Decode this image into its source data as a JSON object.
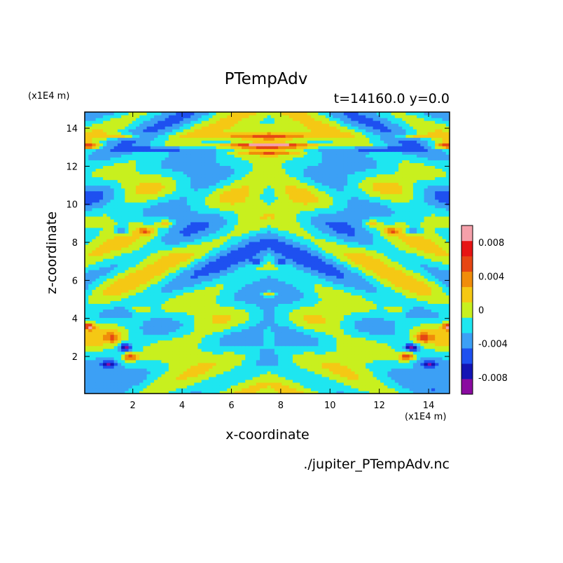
{
  "chart_data": {
    "type": "heatmap",
    "title": "PTempAdv",
    "subtitle": "t=14160.0 y=0.0",
    "xlabel": "x-coordinate",
    "ylabel": "z-coordinate",
    "x_unit": "(x1E4 m)",
    "y_unit": "(x1E4 m)",
    "footer": "./jupiter_PTempAdv.nc",
    "xlim": [
      0.05,
      14.85
    ],
    "ylim": [
      0.05,
      14.85
    ],
    "x_ticks": [
      2,
      4,
      6,
      8,
      10,
      12,
      14
    ],
    "y_ticks": [
      2,
      4,
      6,
      8,
      10,
      12,
      14
    ],
    "grid": false,
    "colorbar": {
      "levels": [
        -0.01,
        -0.008,
        -0.006,
        -0.004,
        -0.002,
        0,
        0.002,
        0.004,
        0.006,
        0.008,
        0.01
      ],
      "colors": [
        "#8a0aa0",
        "#1414b4",
        "#1e50f0",
        "#3ca0f5",
        "#1ee6f0",
        "#c8f01e",
        "#f5c814",
        "#f08c0a",
        "#e64614",
        "#e61414",
        "#f5a0aa"
      ],
      "tick_labels": [
        "-0.008",
        "-0.004",
        "0",
        "0.004",
        "0.008"
      ],
      "tick_values": [
        -0.008,
        -0.004,
        0,
        0.004,
        0.008
      ]
    },
    "background_value": -0.001,
    "features": [
      {
        "x": 7.5,
        "z": 13.1,
        "rx": 2.2,
        "rz": 0.12,
        "v": 0.009
      },
      {
        "x": 7.5,
        "z": 13.6,
        "rx": 2.6,
        "rz": 0.15,
        "v": 0.005
      },
      {
        "x": 1.5,
        "z": 13.6,
        "rx": 0.9,
        "rz": 0.12,
        "v": 0.005
      },
      {
        "x": 13.5,
        "z": 13.6,
        "rx": 0.9,
        "rz": 0.12,
        "v": 0.005
      },
      {
        "x": 0.3,
        "z": 13.1,
        "rx": 0.5,
        "rz": 0.15,
        "v": 0.007
      },
      {
        "x": 14.7,
        "z": 13.1,
        "rx": 0.5,
        "rz": 0.15,
        "v": 0.007
      },
      {
        "x": 3.0,
        "z": 12.9,
        "rx": 1.2,
        "rz": 0.15,
        "v": -0.005
      },
      {
        "x": 12.0,
        "z": 12.9,
        "rx": 1.2,
        "rz": 0.15,
        "v": -0.005
      },
      {
        "x": 7.5,
        "z": 12.7,
        "rx": 1.2,
        "rz": 0.12,
        "v": 0.005
      },
      {
        "x": 2.5,
        "z": 8.6,
        "rx": 0.35,
        "rz": 0.2,
        "v": 0.005
      },
      {
        "x": 12.5,
        "z": 8.6,
        "rx": 0.35,
        "rz": 0.2,
        "v": 0.005
      },
      {
        "x": 1.6,
        "z": 8.6,
        "rx": 0.3,
        "rz": 0.2,
        "v": -0.005
      },
      {
        "x": 13.4,
        "z": 8.6,
        "rx": 0.3,
        "rz": 0.2,
        "v": -0.005
      },
      {
        "x": 3.3,
        "z": 9.0,
        "rx": 0.3,
        "rz": 0.2,
        "v": 0.004
      },
      {
        "x": 11.7,
        "z": 9.0,
        "rx": 0.3,
        "rz": 0.2,
        "v": 0.004
      },
      {
        "x": 7.5,
        "z": 5.3,
        "rx": 0.3,
        "rz": 0.15,
        "v": 0.006
      },
      {
        "x": 7.0,
        "z": 7.0,
        "rx": 0.2,
        "rz": 0.15,
        "v": -0.005
      },
      {
        "x": 8.0,
        "z": 7.0,
        "rx": 0.2,
        "rz": 0.15,
        "v": -0.005
      },
      {
        "x": 1.7,
        "z": 2.5,
        "rx": 0.25,
        "rz": 0.2,
        "v": -0.008
      },
      {
        "x": 13.3,
        "z": 2.5,
        "rx": 0.25,
        "rz": 0.2,
        "v": -0.008
      },
      {
        "x": 1.9,
        "z": 2.0,
        "rx": 0.3,
        "rz": 0.2,
        "v": 0.009
      },
      {
        "x": 13.1,
        "z": 2.0,
        "rx": 0.3,
        "rz": 0.2,
        "v": 0.009
      },
      {
        "x": 1.2,
        "z": 3.0,
        "rx": 0.3,
        "rz": 0.25,
        "v": 0.005
      },
      {
        "x": 13.8,
        "z": 3.0,
        "rx": 0.3,
        "rz": 0.25,
        "v": 0.005
      },
      {
        "x": 0.2,
        "z": 3.6,
        "rx": 0.25,
        "rz": 0.2,
        "v": 0.009
      },
      {
        "x": 14.8,
        "z": 3.6,
        "rx": 0.25,
        "rz": 0.2,
        "v": 0.009
      },
      {
        "x": 1.0,
        "z": 1.6,
        "rx": 0.3,
        "rz": 0.2,
        "v": -0.006
      },
      {
        "x": 14.0,
        "z": 1.6,
        "rx": 0.3,
        "rz": 0.2,
        "v": -0.006
      },
      {
        "x": 2.3,
        "z": 4.5,
        "rx": 0.4,
        "rz": 0.15,
        "v": 0.004
      },
      {
        "x": 12.7,
        "z": 4.5,
        "rx": 0.4,
        "rz": 0.15,
        "v": 0.004
      },
      {
        "x": 3.1,
        "z": 7.5,
        "rx": 1.3,
        "rz": 0.6,
        "v": 0.002
      },
      {
        "x": 11.9,
        "z": 7.5,
        "rx": 1.3,
        "rz": 0.6,
        "v": 0.002
      },
      {
        "x": 6.0,
        "z": 11.0,
        "rx": 1.4,
        "rz": 0.7,
        "v": 0.002
      },
      {
        "x": 9.0,
        "z": 11.0,
        "rx": 1.4,
        "rz": 0.7,
        "v": 0.002
      },
      {
        "x": 3.0,
        "z": 3.2,
        "rx": 1.2,
        "rz": 1.0,
        "v": 0.002
      },
      {
        "x": 12.0,
        "z": 3.2,
        "rx": 1.2,
        "rz": 1.0,
        "v": 0.002
      },
      {
        "x": 6.5,
        "z": 1.8,
        "rx": 1.0,
        "rz": 1.0,
        "v": 0.002
      },
      {
        "x": 8.5,
        "z": 1.8,
        "rx": 1.0,
        "rz": 1.0,
        "v": 0.002
      },
      {
        "x": 7.5,
        "z": 13.7,
        "rx": 6.0,
        "rz": 0.6,
        "v": 0.002
      }
    ]
  }
}
